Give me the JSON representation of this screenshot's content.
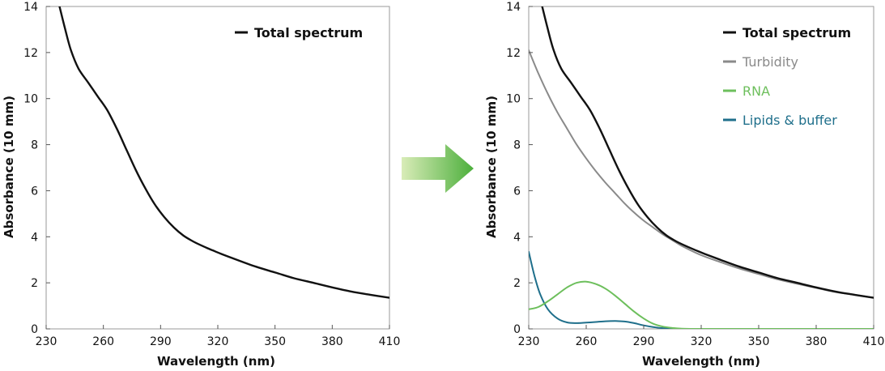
{
  "arrow": {
    "colors": [
      "#d9ecb8",
      "#4caf3c"
    ]
  },
  "chart_data": [
    {
      "type": "line",
      "title": "",
      "xlabel": "Wavelength (nm)",
      "ylabel": "Absorbance (10 mm)",
      "xlim": [
        230,
        410
      ],
      "ylim": [
        0,
        14
      ],
      "xticks": [
        230,
        260,
        290,
        320,
        350,
        380,
        410
      ],
      "yticks": [
        0,
        2,
        4,
        6,
        8,
        10,
        12,
        14
      ],
      "grid": false,
      "legend_position": "top-right",
      "series": [
        {
          "name": "Total spectrum",
          "color": "#111111",
          "bold": true,
          "x": [
            237,
            240,
            243,
            247,
            252,
            257,
            262,
            267,
            272,
            277,
            282,
            287,
            292,
            297,
            302,
            307,
            312,
            317,
            322,
            330,
            340,
            350,
            360,
            370,
            380,
            390,
            400,
            410
          ],
          "y": [
            14.0,
            13.0,
            12.1,
            11.3,
            10.7,
            10.1,
            9.5,
            8.7,
            7.8,
            6.9,
            6.1,
            5.4,
            4.85,
            4.4,
            4.05,
            3.8,
            3.6,
            3.42,
            3.25,
            3.0,
            2.7,
            2.45,
            2.2,
            2.0,
            1.8,
            1.62,
            1.48,
            1.35
          ]
        }
      ]
    },
    {
      "type": "line",
      "title": "",
      "xlabel": "Wavelength (nm)",
      "ylabel": "Absorbance (10 mm)",
      "xlim": [
        230,
        410
      ],
      "ylim": [
        0,
        14
      ],
      "xticks": [
        230,
        260,
        290,
        320,
        350,
        380,
        410
      ],
      "yticks": [
        0,
        2,
        4,
        6,
        8,
        10,
        12,
        14
      ],
      "grid": false,
      "legend_position": "top-right",
      "series": [
        {
          "name": "Total spectrum",
          "color": "#111111",
          "bold": true,
          "x": [
            237,
            240,
            243,
            247,
            252,
            257,
            262,
            267,
            272,
            277,
            282,
            287,
            292,
            297,
            302,
            307,
            312,
            317,
            322,
            330,
            340,
            350,
            360,
            370,
            380,
            390,
            400,
            410
          ],
          "y": [
            14.0,
            13.0,
            12.1,
            11.3,
            10.7,
            10.1,
            9.5,
            8.7,
            7.8,
            6.9,
            6.1,
            5.4,
            4.85,
            4.4,
            4.05,
            3.8,
            3.6,
            3.42,
            3.25,
            3.0,
            2.7,
            2.45,
            2.2,
            2.0,
            1.8,
            1.62,
            1.48,
            1.35
          ]
        },
        {
          "name": "Turbidity",
          "color": "#8a8a8a",
          "bold": false,
          "x": [
            230,
            235,
            240,
            245,
            250,
            255,
            260,
            265,
            270,
            275,
            280,
            285,
            290,
            295,
            300,
            305,
            310,
            320,
            330,
            340,
            350,
            360,
            370,
            380,
            390,
            400,
            410
          ],
          "y": [
            12.1,
            11.1,
            10.2,
            9.4,
            8.7,
            8.0,
            7.4,
            6.85,
            6.35,
            5.9,
            5.45,
            5.05,
            4.7,
            4.4,
            4.1,
            3.85,
            3.6,
            3.2,
            2.9,
            2.62,
            2.38,
            2.15,
            1.96,
            1.78,
            1.6,
            1.48,
            1.35
          ]
        },
        {
          "name": "RNA",
          "color": "#6dbf5c",
          "bold": false,
          "x": [
            230,
            235,
            240,
            245,
            250,
            255,
            260,
            265,
            270,
            275,
            280,
            285,
            290,
            295,
            300,
            305,
            310,
            320,
            330,
            350,
            380,
            410
          ],
          "y": [
            0.85,
            0.95,
            1.2,
            1.5,
            1.8,
            2.0,
            2.05,
            1.95,
            1.75,
            1.45,
            1.1,
            0.75,
            0.45,
            0.22,
            0.1,
            0.04,
            0.01,
            0.0,
            0.0,
            0.0,
            0.0,
            0.0
          ]
        },
        {
          "name": "Lipids & buffer",
          "color": "#1f6f8b",
          "bold": false,
          "x": [
            230,
            233,
            236,
            240,
            245,
            250,
            255,
            260,
            265,
            270,
            275,
            280,
            285,
            290,
            295,
            300,
            310,
            320,
            340,
            380,
            410
          ],
          "y": [
            3.35,
            2.3,
            1.5,
            0.85,
            0.45,
            0.28,
            0.25,
            0.27,
            0.3,
            0.33,
            0.34,
            0.32,
            0.25,
            0.15,
            0.08,
            0.03,
            0.0,
            0.0,
            0.0,
            0.0,
            0.0
          ]
        }
      ]
    }
  ]
}
